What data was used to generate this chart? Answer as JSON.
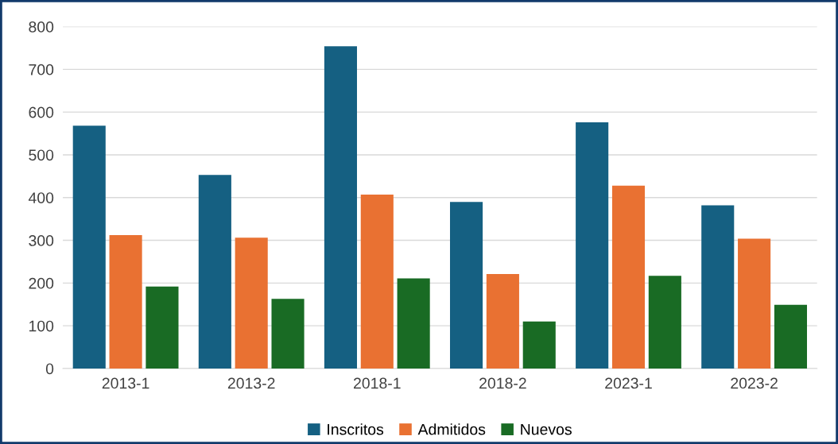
{
  "chart_data": {
    "type": "bar",
    "categories": [
      "2013-1",
      "2013-2",
      "2018-1",
      "2018-2",
      "2023-1",
      "2023-2"
    ],
    "series": [
      {
        "name": "Inscritos",
        "color": "#156082",
        "values": [
          568,
          453,
          754,
          390,
          576,
          382
        ]
      },
      {
        "name": "Admitidos",
        "color": "#e97132",
        "values": [
          312,
          306,
          407,
          221,
          428,
          304
        ]
      },
      {
        "name": "Nuevos",
        "color": "#196b24",
        "values": [
          192,
          163,
          211,
          110,
          217,
          149
        ]
      }
    ],
    "ylim": [
      0,
      800
    ],
    "yticks": [
      0,
      100,
      200,
      300,
      400,
      500,
      600,
      700,
      800
    ],
    "grid": "y",
    "legend": "bottom"
  }
}
